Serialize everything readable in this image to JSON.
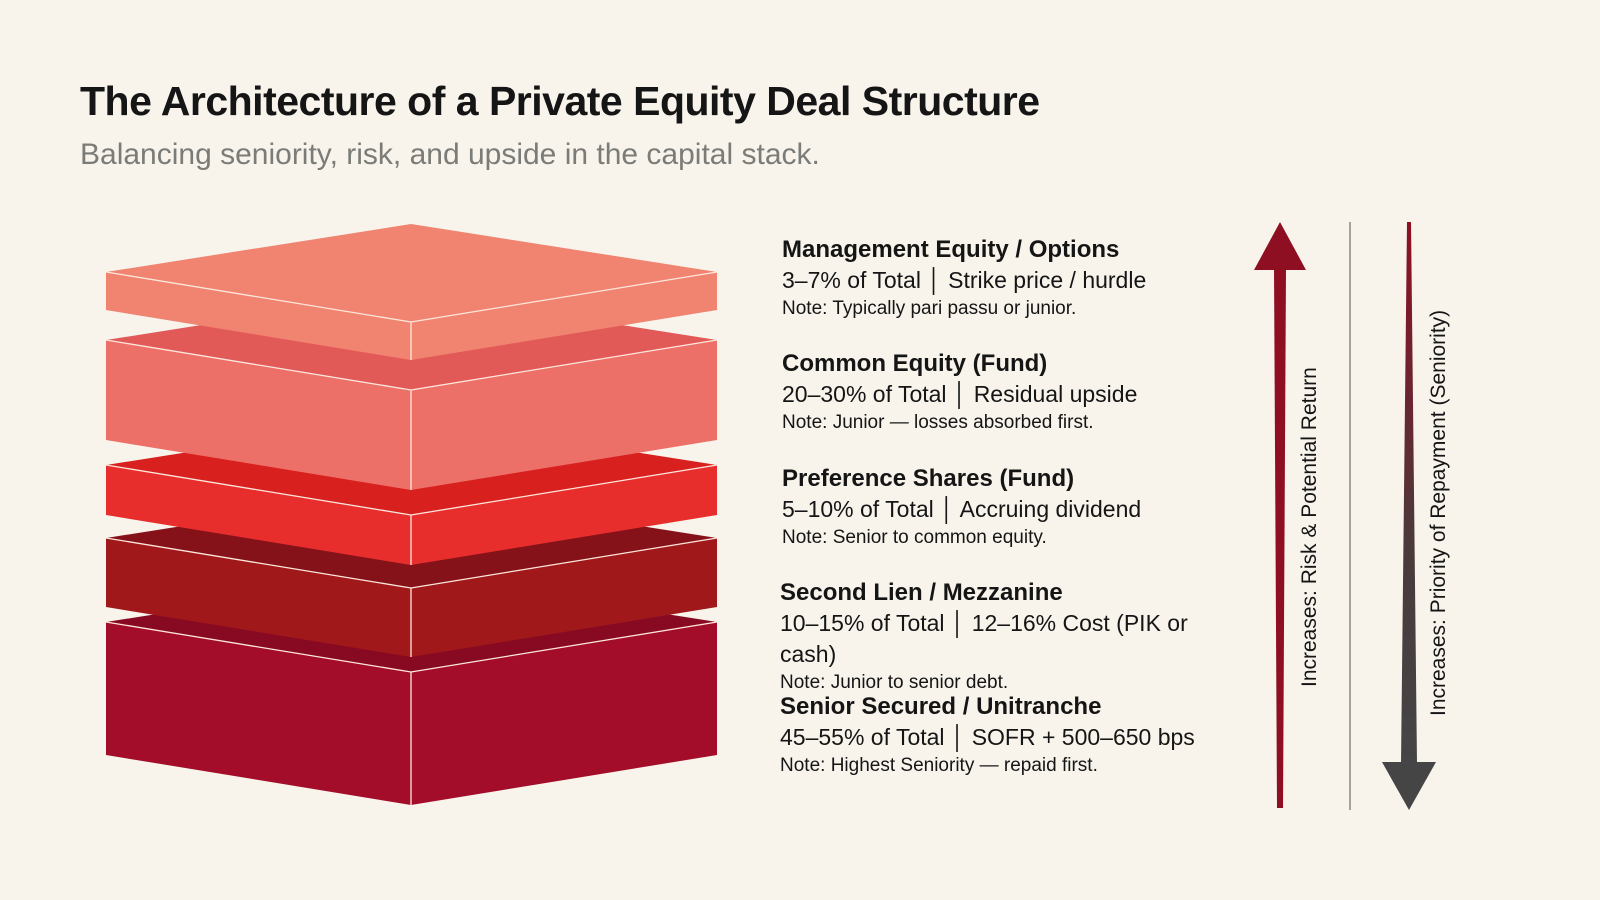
{
  "header": {
    "title": "The Architecture of a Private Equity Deal Structure",
    "subtitle": "Balancing seniority, risk, and upside in the capital stack."
  },
  "tiers": [
    {
      "name": "Management Equity / Options",
      "detail": "3–7% of Total │ Strike price / hurdle",
      "note": "Note: Typically pari passu or junior.",
      "color": "#f08470",
      "top_color": "#f08470"
    },
    {
      "name": "Common Equity (Fund)",
      "detail": "20–30% of Total │ Residual upside",
      "note": "Note: Junior — losses absorbed first.",
      "color": "#ec7068",
      "top_color": "#e25a58"
    },
    {
      "name": "Preference Shares (Fund)",
      "detail": "5–10% of Total │ Accruing dividend",
      "note": "Note: Senior to common equity.",
      "color": "#e82e2c",
      "top_color": "#d8201f"
    },
    {
      "name": "Second Lien / Mezzanine",
      "detail": "10–15% of Total │ 12–16% Cost (PIK or cash)",
      "note": "Note: Junior to senior debt.",
      "color": "#a1181b",
      "top_color": "#861219"
    },
    {
      "name": "Senior Secured / Unitranche",
      "detail": "45–55% of Total │ SOFR + 500–650 bps",
      "note": "Note: Highest Seniority — repaid first.",
      "color": "#a30d2a",
      "top_color": "#880a22"
    }
  ],
  "axes": {
    "risk_label": "Increases: Risk & Potential Return",
    "risk_color": "#8e0f22",
    "seniority_label": "Increases: Priority of Repayment (Seniority)",
    "seniority_color": "#454545"
  }
}
